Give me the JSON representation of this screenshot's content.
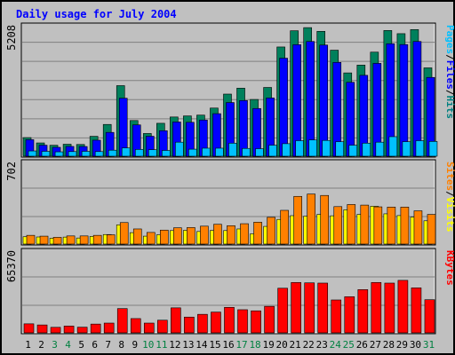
{
  "chart_data": {
    "type": "bar",
    "title": "Daily usage for July 2004",
    "categories": [
      "1",
      "2",
      "3",
      "4",
      "5",
      "6",
      "7",
      "8",
      "9",
      "10",
      "11",
      "12",
      "13",
      "14",
      "15",
      "16",
      "17",
      "18",
      "19",
      "20",
      "21",
      "22",
      "23",
      "24",
      "25",
      "26",
      "27",
      "28",
      "29",
      "30",
      "31"
    ],
    "weekend_days": [
      "3",
      "4",
      "10",
      "11",
      "17",
      "18",
      "24",
      "25",
      "31"
    ],
    "panels": [
      {
        "name": "top",
        "ymax": 5208,
        "ymax_label": "5208",
        "series_labels": [
          "Pages",
          "Files",
          "Hits"
        ],
        "series_label_colors": [
          "#00c0ff",
          "#0000ff",
          "#008080"
        ],
        "series": [
          {
            "name": "Hits",
            "color": "#00805c",
            "values": [
              743,
              530,
              436,
              478,
              468,
              794,
              1268,
              2817,
              1424,
              907,
              1314,
              1565,
              1608,
              1640,
              1922,
              2480,
              2715,
              2265,
              2745,
              4360,
              5008,
              5133,
              4984,
              4232,
              3326,
              3638,
              4154,
              5018,
              4892,
              5055,
              3527
            ]
          },
          {
            "name": "Files",
            "color": "#0000ff",
            "values": [
              660,
              440,
              355,
              390,
              387,
              640,
              950,
              2315,
              1250,
              797,
              1018,
              1366,
              1353,
              1445,
              1698,
              2142,
              2222,
              1904,
              2325,
              3913,
              4452,
              4580,
              4437,
              3745,
              2950,
              3228,
              3706,
              4490,
              4457,
              4580,
              3145
            ]
          },
          {
            "name": "Pages",
            "color": "#00c0ff",
            "values": [
              210,
              195,
              175,
              185,
              195,
              185,
              240,
              330,
              270,
              260,
              230,
              560,
              280,
              320,
              320,
              520,
              310,
              300,
              440,
              500,
              620,
              650,
              630,
              580,
              440,
              520,
              560,
              780,
              580,
              620,
              590
            ]
          }
        ]
      },
      {
        "name": "middle",
        "ymax": 702,
        "ymax_label": "702",
        "series_labels": [
          "Sites",
          "Visits"
        ],
        "series_label_colors": [
          "#ff8000",
          "#ffff00"
        ],
        "series": [
          {
            "name": "Visits",
            "color": "#ffff00",
            "values": [
              63,
              61,
              50,
              60,
              52,
              66,
              82,
              165,
              98,
              68,
              80,
              116,
              118,
              108,
              117,
              116,
              130,
              88,
              152,
              212,
              244,
              240,
              255,
              243,
              295,
              255,
              325,
              260,
              245,
              232,
              200
            ]
          },
          {
            "name": "Sites",
            "color": "#ff8000",
            "values": [
              75,
              68,
              58,
              70,
              70,
              75,
              80,
              185,
              130,
              100,
              120,
              140,
              142,
              154,
              170,
              158,
              175,
              188,
              230,
              290,
              410,
              430,
              418,
              322,
              340,
              335,
              320,
              318,
              318,
              286,
              255
            ]
          }
        ]
      },
      {
        "name": "bottom",
        "ymax": 65370,
        "ymax_label": "65370",
        "series_labels": [
          "KBytes"
        ],
        "series_label_colors": [
          "#ff0000"
        ],
        "series": [
          {
            "name": "KBytes",
            "color": "#ff0000",
            "values": [
              7200,
              6300,
              4400,
              5400,
              4500,
              7000,
              7800,
              19400,
              11400,
              7800,
              10100,
              20000,
              12600,
              14800,
              16600,
              20400,
              18500,
              17600,
              21200,
              35700,
              40300,
              40000,
              39800,
              26300,
              28900,
              34600,
              40300,
              39800,
              42000,
              36000,
              26500
            ]
          }
        ]
      }
    ]
  }
}
